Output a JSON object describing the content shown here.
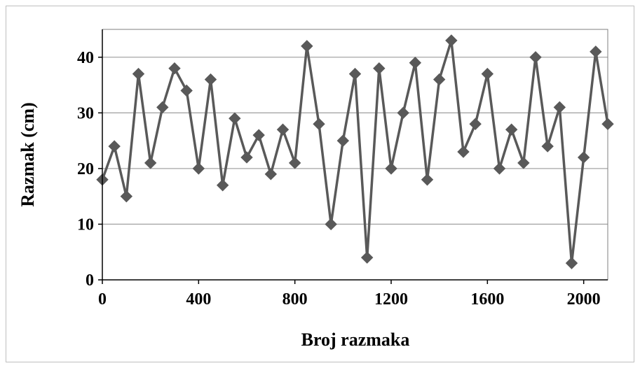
{
  "chart_data": {
    "type": "line",
    "title": "",
    "xlabel": "Broj razmaka",
    "ylabel": "Razmak (cm)",
    "xlim": [
      0,
      2100
    ],
    "ylim": [
      0,
      45
    ],
    "x_ticks": [
      0,
      400,
      800,
      1200,
      1600,
      2000
    ],
    "y_ticks": [
      0,
      10,
      20,
      30,
      40
    ],
    "grid": "horizontal",
    "legend": "none",
    "marker": "diamond",
    "series_color": "#595959",
    "series": [
      {
        "x": [
          0,
          50,
          100,
          150,
          200,
          250,
          300,
          350,
          400,
          450,
          500,
          550,
          600,
          650,
          700,
          750,
          800,
          850,
          900,
          950,
          1000,
          1050,
          1100,
          1150,
          1200,
          1250,
          1300,
          1350,
          1400,
          1450,
          1500,
          1550,
          1600,
          1650,
          1700,
          1750,
          1800,
          1850,
          1900,
          1950,
          2000,
          2050,
          2100
        ],
        "y": [
          18,
          24,
          15,
          37,
          21,
          31,
          38,
          34,
          20,
          36,
          17,
          29,
          22,
          26,
          19,
          27,
          21,
          42,
          28,
          10,
          25,
          37,
          4,
          38,
          20,
          30,
          39,
          18,
          36,
          43,
          23,
          28,
          37,
          20,
          27,
          21,
          40,
          24,
          31,
          3,
          22,
          41,
          28
        ]
      }
    ]
  }
}
